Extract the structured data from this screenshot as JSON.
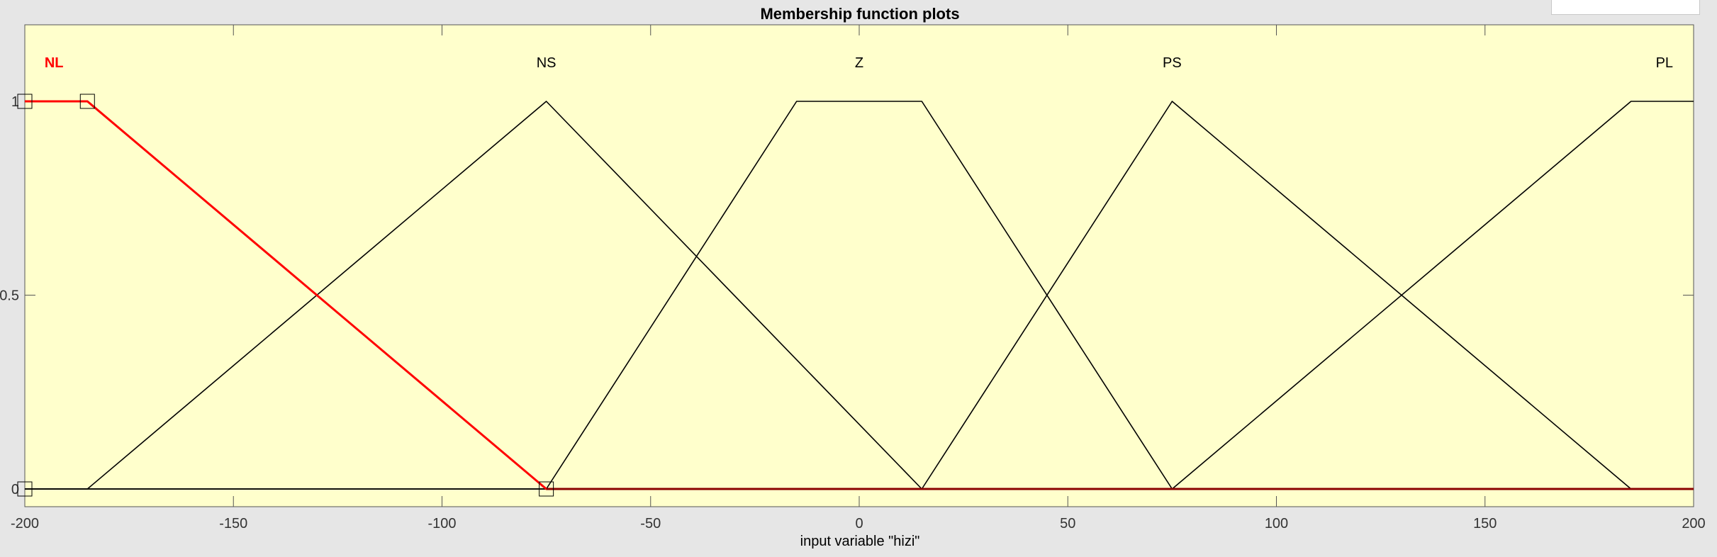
{
  "window": {
    "title": "Membership function plots",
    "corner_field_value": ""
  },
  "colors": {
    "background": "#e6e6e6",
    "plot_background": "#ffffcc",
    "selected_mf": "#ff0000",
    "mf": "#000000"
  },
  "chart_data": {
    "type": "line",
    "title": "Membership function plots",
    "xlabel": "input variable \"hizi\"",
    "ylabel": "",
    "xlim": [
      -200,
      200
    ],
    "ylim": [
      0,
      1
    ],
    "x_ticks": [
      -200,
      -150,
      -100,
      -50,
      0,
      50,
      100,
      150,
      200
    ],
    "x_tick_labels": [
      "-200",
      "-150",
      "-100",
      "-50",
      "0",
      "50",
      "100",
      "150",
      "200"
    ],
    "y_ticks": [
      0,
      0.5,
      1
    ],
    "y_tick_labels": [
      "0",
      "0.5",
      "1"
    ],
    "grid": false,
    "selected_series": "NL",
    "series": [
      {
        "name": "NL",
        "shape": "trapmf",
        "params": [
          -200,
          -200,
          -185,
          -75
        ],
        "selected": true
      },
      {
        "name": "NS",
        "shape": "trimf",
        "params": [
          -185,
          -75,
          15
        ]
      },
      {
        "name": "Z",
        "shape": "trapmf",
        "params": [
          -75,
          -15,
          15,
          75
        ]
      },
      {
        "name": "PS",
        "shape": "trimf",
        "params": [
          15,
          75,
          185
        ]
      },
      {
        "name": "PL",
        "shape": "trapmf",
        "params": [
          75,
          185,
          200,
          200
        ]
      }
    ]
  }
}
